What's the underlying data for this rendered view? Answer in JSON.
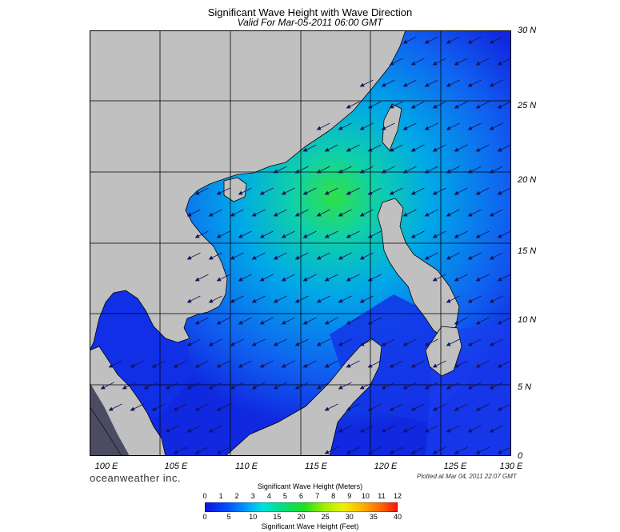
{
  "title": "Significant Wave Height with Wave Direction",
  "subtitle": "Valid For Mar-05-2011 06:00 GMT",
  "latitude_labels": [
    "30 N",
    "25 N",
    "20 N",
    "15 N",
    "10 N",
    "5 N",
    "0"
  ],
  "longitude_labels": [
    "100 E",
    "105 E",
    "110 E",
    "115 E",
    "120 E",
    "125 E",
    "130 E"
  ],
  "brand": "oceanweather inc.",
  "plotted": "Plotted at Mar 04, 2011 22:07 GMT",
  "colorbar": {
    "title_meters": "Significant Wave Height (Meters)",
    "title_feet": "Significant Wave Height (Feet)",
    "meter_ticks": [
      "0",
      "1",
      "2",
      "3",
      "4",
      "5",
      "6",
      "7",
      "8",
      "9",
      "10",
      "11",
      "12"
    ],
    "feet_ticks": [
      "0",
      "5",
      "10",
      "15",
      "20",
      "25",
      "30",
      "35",
      "40"
    ]
  },
  "colors": {
    "land": "#c0c0c0",
    "ocean_low": "#1020e0",
    "ocean_mid": "#00b0e0",
    "ocean_high": "#40e040",
    "arrow": "#1a1a66"
  },
  "wave_direction": "from northeast toward southwest"
}
